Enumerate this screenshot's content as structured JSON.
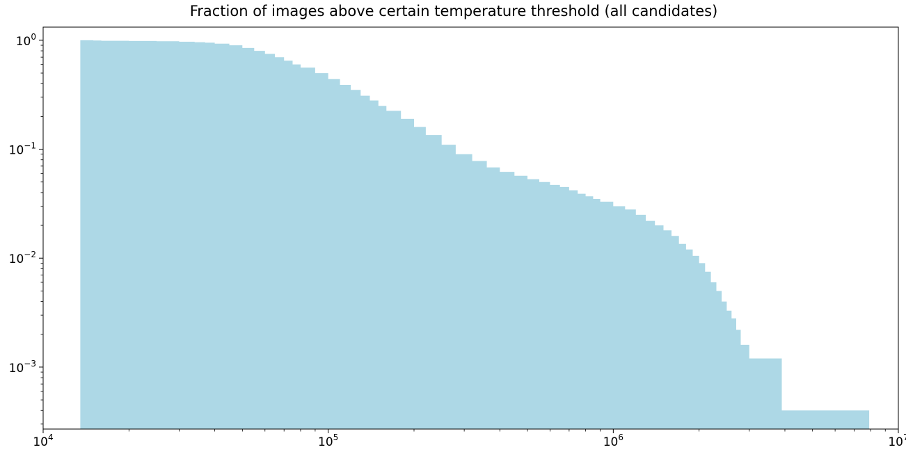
{
  "chart_data": {
    "type": "area",
    "title": "Fraction of images above certain temperature threshold (all candidates)",
    "xlabel": "",
    "ylabel": "",
    "x_scale": "log",
    "y_scale": "log",
    "xlim": [
      10000,
      10000000
    ],
    "ylim": [
      0.00027,
      1.32
    ],
    "grid": false,
    "legend": "none",
    "fill_color": "#add8e6",
    "x_ticks": [
      {
        "value": 10000,
        "base": "10",
        "exp": "4"
      },
      {
        "value": 100000,
        "base": "10",
        "exp": "5"
      },
      {
        "value": 1000000,
        "base": "10",
        "exp": "6"
      },
      {
        "value": 10000000,
        "base": "10",
        "exp": "7"
      }
    ],
    "y_ticks": [
      {
        "value": 1,
        "base": "10",
        "exp": "0"
      },
      {
        "value": 0.1,
        "base": "10",
        "exp": "−1"
      },
      {
        "value": 0.01,
        "base": "10",
        "exp": "−2"
      },
      {
        "value": 0.001,
        "base": "10",
        "exp": "−3"
      }
    ],
    "series": [
      {
        "x": [
          13500,
          15000,
          16000,
          20000,
          25000,
          30000,
          34000,
          37000,
          40000,
          45000,
          50000,
          55000,
          60000,
          65000,
          70000,
          75000,
          80000,
          90000,
          100000,
          110000,
          120000,
          130000,
          140000,
          150000,
          160000,
          180000,
          200000,
          220000,
          250000,
          280000,
          320000,
          360000,
          400000,
          450000,
          500000,
          550000,
          600000,
          650000,
          700000,
          750000,
          800000,
          850000,
          900000,
          1000000,
          1100000,
          1200000,
          1300000,
          1400000,
          1500000,
          1600000,
          1700000,
          1800000,
          1900000,
          2000000,
          2100000,
          2200000,
          2300000,
          2400000,
          2500000,
          2600000,
          2700000,
          2800000,
          3000000,
          3500000,
          3900000,
          7900000
        ],
        "y": [
          1.0,
          0.995,
          0.99,
          0.985,
          0.98,
          0.97,
          0.96,
          0.95,
          0.93,
          0.9,
          0.85,
          0.8,
          0.75,
          0.7,
          0.65,
          0.6,
          0.56,
          0.5,
          0.44,
          0.39,
          0.35,
          0.31,
          0.28,
          0.25,
          0.225,
          0.19,
          0.16,
          0.135,
          0.11,
          0.09,
          0.078,
          0.068,
          0.062,
          0.057,
          0.053,
          0.05,
          0.047,
          0.045,
          0.042,
          0.039,
          0.037,
          0.035,
          0.033,
          0.03,
          0.028,
          0.025,
          0.022,
          0.02,
          0.018,
          0.016,
          0.0135,
          0.012,
          0.0105,
          0.009,
          0.0075,
          0.006,
          0.005,
          0.004,
          0.0033,
          0.0028,
          0.0022,
          0.0016,
          0.0012,
          0.0012,
          0.0004,
          0.0004
        ]
      }
    ]
  }
}
